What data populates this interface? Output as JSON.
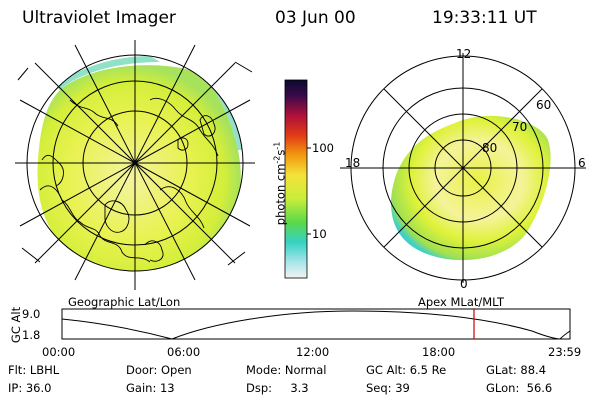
{
  "header": {
    "title": "Ultraviolet Imager",
    "date": "03 Jun 00",
    "time": "19:33:11 UT"
  },
  "colorbar": {
    "label": "photon cm⁻²s⁻¹",
    "label_main": "photon cm",
    "label_sup1": "-2",
    "label_s": "s",
    "label_sup2": "-1",
    "ticks": [
      "100",
      "10"
    ],
    "scale": "log"
  },
  "geo_panel": {
    "caption": "Geographic Lat/Lon"
  },
  "mag_panel": {
    "caption": "Apex MLat/MLT",
    "mlt_labels": [
      "12",
      "18",
      "6",
      "0"
    ],
    "lat_labels": [
      "60",
      "70",
      "80"
    ]
  },
  "altitude_strip": {
    "ylabel": "GC Alt",
    "y_ticks": [
      "9.0",
      "1.8"
    ],
    "time_ticks": [
      "00:00",
      "06:00",
      "12:00",
      "18:00",
      "23:59"
    ],
    "marker_time": "19:33",
    "marker_color": "#cc0000"
  },
  "status": {
    "row1": [
      {
        "k": "Flt:",
        "v": "LBHL"
      },
      {
        "k": "Door:",
        "v": "Open"
      },
      {
        "k": "Mode:",
        "v": "Normal"
      },
      {
        "k": "GC Alt:",
        "v": "6.5 Re"
      },
      {
        "k": "GLat:",
        "v": "88.4"
      }
    ],
    "row2": [
      {
        "k": "IP:",
        "v": "36.0"
      },
      {
        "k": "Gain:",
        "v": "13"
      },
      {
        "k": "Dsp:",
        "v": "3.3"
      },
      {
        "k": "Seq:",
        "v": "39"
      },
      {
        "k": "GLon:",
        "v": "56.6"
      }
    ]
  },
  "colors": {
    "aurora_base": "#dff23a",
    "aurora_bright": "#f6f5a2",
    "aurora_edge": "#8fdc5a",
    "aurora_rim": "#40d0c8"
  }
}
